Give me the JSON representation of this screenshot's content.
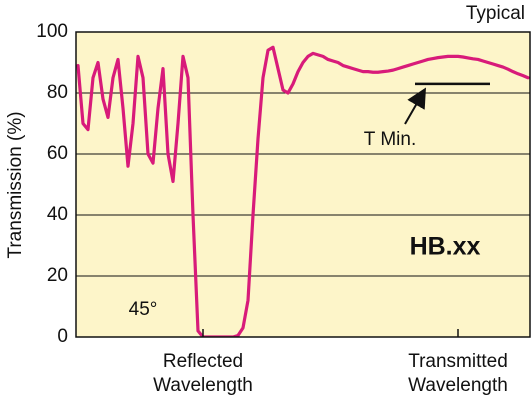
{
  "chart_data": {
    "type": "line",
    "ylabel": "Transmission (%)",
    "annotations": {
      "corner": "Typical",
      "product": "HB.xx",
      "angle": "45°"
    },
    "t_min": {
      "label": "T Min.",
      "value": 83
    },
    "ylim": [
      0,
      100
    ],
    "yticks": [
      0,
      20,
      40,
      60,
      80,
      100
    ],
    "grid": true,
    "categories": [
      null,
      null,
      null,
      null,
      null,
      null,
      null,
      null,
      null,
      null,
      null,
      null,
      null,
      null,
      null,
      null,
      null,
      null,
      null,
      null,
      null,
      null,
      null,
      null,
      null,
      "Reflected Wavelength",
      null,
      null,
      null,
      null,
      null,
      null,
      null,
      null,
      null,
      null,
      null,
      null,
      null,
      null,
      null,
      null,
      null,
      null,
      null,
      null,
      null,
      null,
      null,
      null,
      null,
      null,
      null,
      null,
      null,
      null,
      null,
      null,
      null,
      null,
      null,
      null,
      null,
      null,
      null,
      null,
      null,
      null,
      null,
      null,
      null,
      null,
      null,
      null,
      null,
      null,
      "Transmitted Wavelength",
      null,
      null,
      null,
      null,
      null,
      null,
      null,
      null,
      null,
      null,
      null,
      null,
      null,
      null
    ],
    "series": [
      {
        "color": "#d81b7a",
        "values": [
          89,
          70,
          68,
          85,
          90,
          78,
          72,
          85,
          91,
          75,
          56,
          70,
          92,
          85,
          60,
          57,
          75,
          88,
          60,
          51,
          70,
          92,
          85,
          40,
          2,
          0,
          0,
          0,
          0,
          0,
          0,
          0,
          0.5,
          3,
          12,
          40,
          65,
          85,
          94,
          95,
          88,
          81,
          80,
          83,
          87,
          90,
          92,
          93,
          92.5,
          92,
          91,
          90.5,
          90,
          89,
          88.5,
          88,
          87.5,
          87,
          87,
          86.8,
          86.8,
          87,
          87.2,
          87.5,
          88,
          88.5,
          89,
          89.5,
          90,
          90.5,
          91,
          91.3,
          91.6,
          91.8,
          92,
          92,
          92,
          91.8,
          91.5,
          91.2,
          91,
          90.5,
          90,
          89.5,
          89,
          88.5,
          87.8,
          87,
          86.3,
          85.7,
          85
        ]
      }
    ]
  }
}
